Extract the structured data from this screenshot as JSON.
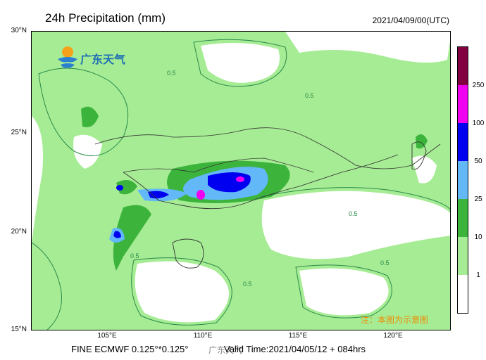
{
  "title": "24h Precipitation (mm)",
  "valid_datetime": "2021/04/09/00(UTC)",
  "logo_text": "广东天气",
  "footer": {
    "left": "FINE ECMWF 0.125°*0.125°",
    "right": "Valid Time:2021/04/05/12 + 084hrs",
    "watermark": "广东天气"
  },
  "note": "注：本图为示意图",
  "axes": {
    "lat_labels": [
      "30°N",
      "25°N",
      "20°N",
      "15°N"
    ],
    "lon_labels": [
      "105°E",
      "110°E",
      "115°E",
      "120°E"
    ]
  },
  "contour_label": "0.5",
  "colors": {
    "land_base": "#a6ec94",
    "level_1": "#a6ec94",
    "level_10": "#3cb43c",
    "level_25": "#63b8f8",
    "level_50": "#0000f0",
    "level_100": "#f000f0",
    "level_250": "#800040",
    "contour_outline": "#2a8a4a",
    "border": "#333333"
  },
  "colorbar": {
    "levels": [
      "1",
      "10",
      "25",
      "50",
      "100",
      "250"
    ],
    "colors": [
      "#ffffff",
      "#a6ec94",
      "#3cb43c",
      "#63b8f8",
      "#0000f0",
      "#f000f0",
      "#800040"
    ]
  }
}
